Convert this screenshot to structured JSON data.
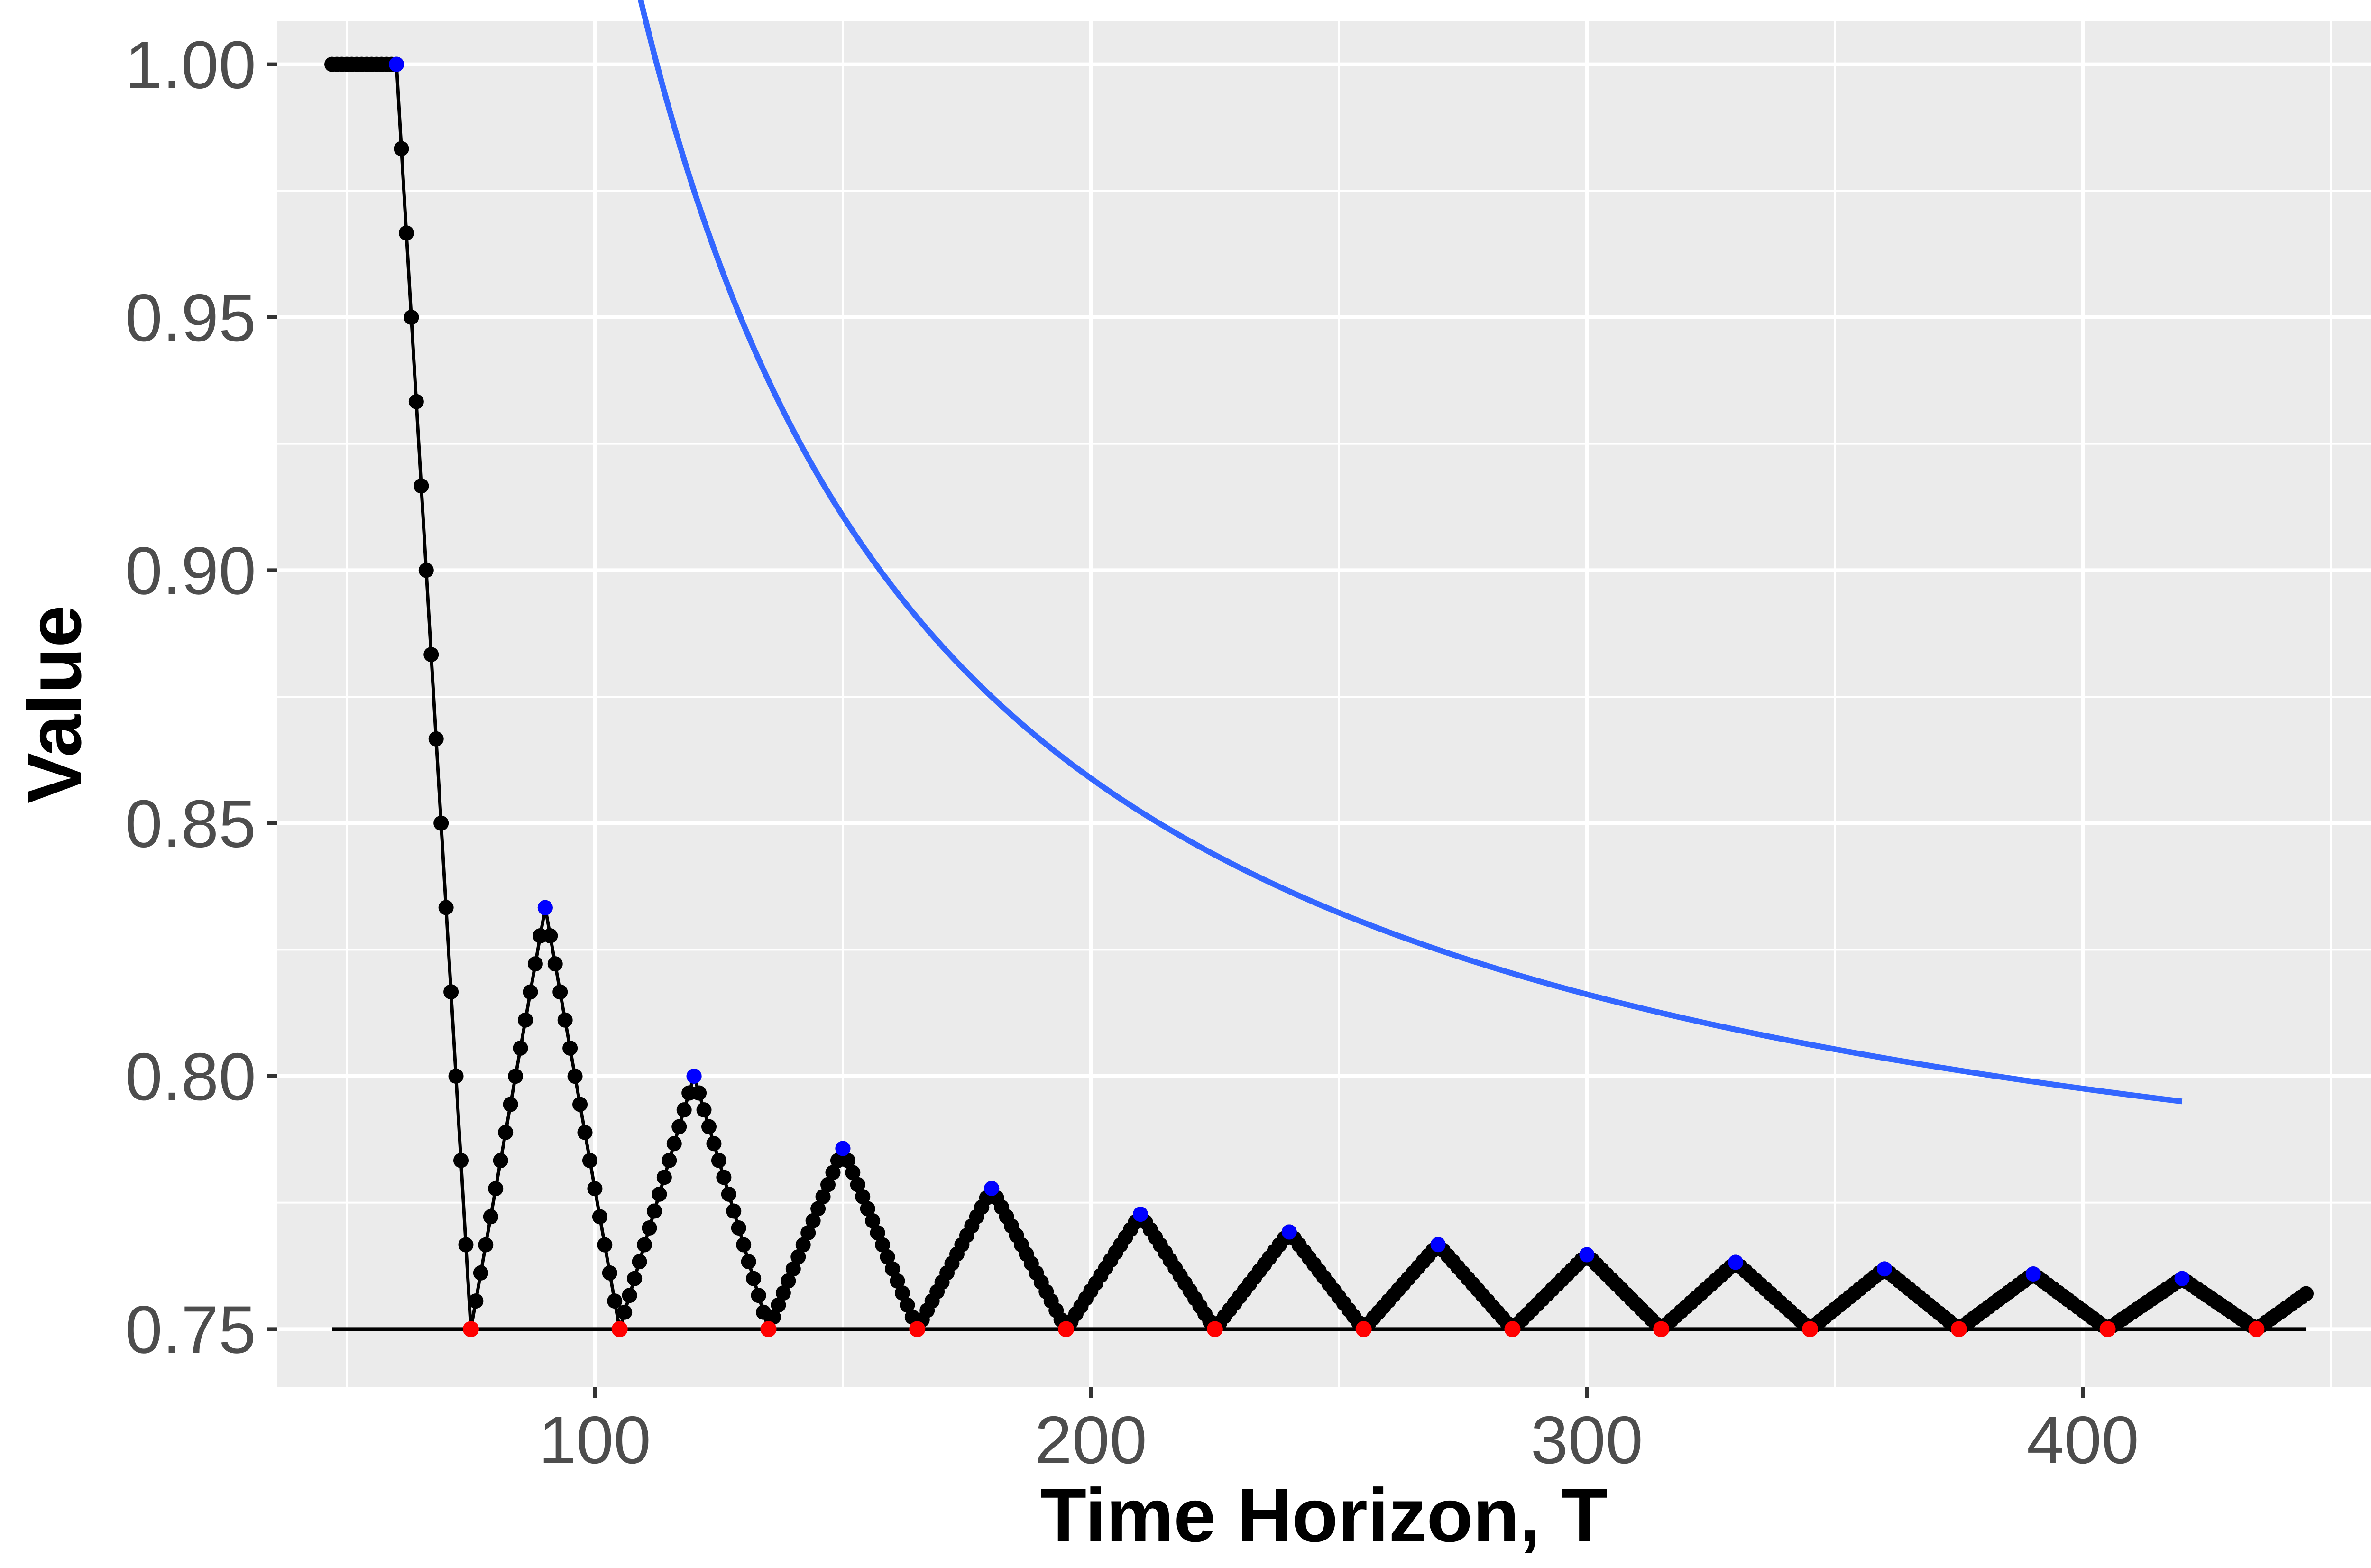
{
  "chart_data": {
    "type": "line",
    "xlabel": "Time Horizon, T",
    "ylabel": "Value",
    "xlim": [
      36,
      458
    ],
    "ylim": [
      0.7385,
      1.0085
    ],
    "x_major_ticks": [
      100,
      200,
      300,
      400
    ],
    "x_tick_labels": [
      "100",
      "200",
      "300",
      "400"
    ],
    "x_minor_ticks": [
      50,
      150,
      250,
      350,
      450
    ],
    "y_major_ticks": [
      0.75,
      0.8,
      0.85,
      0.9,
      0.95,
      1.0
    ],
    "y_tick_labels": [
      "0.75",
      "0.80",
      "0.85",
      "0.90",
      "0.95",
      "1.00"
    ],
    "y_minor_ticks": [
      0.775,
      0.825,
      0.875,
      0.925,
      0.975
    ],
    "grid": true,
    "legend": "none",
    "colors": {
      "panel": "#ebebeb",
      "grid": "#ffffff",
      "value_series": "#000000",
      "envelope": "#3366ff",
      "peak_points": "#0000ff",
      "trough_points": "#ff0000",
      "baseline": "#000000"
    },
    "series": [
      {
        "kind": "flat_segment_then_zigzag",
        "flat_start": 47,
        "flat_end": 60,
        "flat_value": 1.0,
        "peaks": [
          [
            60,
            1.0
          ],
          [
            90,
            0.8333
          ],
          [
            120,
            0.8
          ],
          [
            150,
            0.7857
          ],
          [
            180,
            0.7778
          ],
          [
            210,
            0.7727
          ],
          [
            240,
            0.7692
          ],
          [
            270,
            0.7667
          ],
          [
            300,
            0.7647
          ],
          [
            330,
            0.7632
          ],
          [
            360,
            0.7619
          ],
          [
            390,
            0.7609
          ],
          [
            420,
            0.76
          ]
        ],
        "troughs": [
          [
            75,
            0.75
          ],
          [
            105,
            0.75
          ],
          [
            135,
            0.75
          ],
          [
            165,
            0.75
          ],
          [
            195,
            0.75
          ],
          [
            225,
            0.75
          ],
          [
            255,
            0.75
          ],
          [
            285,
            0.75
          ],
          [
            315,
            0.75
          ],
          [
            345,
            0.75
          ],
          [
            375,
            0.75
          ],
          [
            405,
            0.75
          ],
          [
            435,
            0.75
          ]
        ],
        "end_point": [
          445,
          0.757
        ]
      },
      {
        "kind": "envelope",
        "formula": "0.75*(1+T/(T-45))/2",
        "x_from": 60,
        "x_to": 420
      },
      {
        "kind": "baseline",
        "x_from": 47,
        "x_to": 445,
        "value": 0.75
      }
    ]
  }
}
